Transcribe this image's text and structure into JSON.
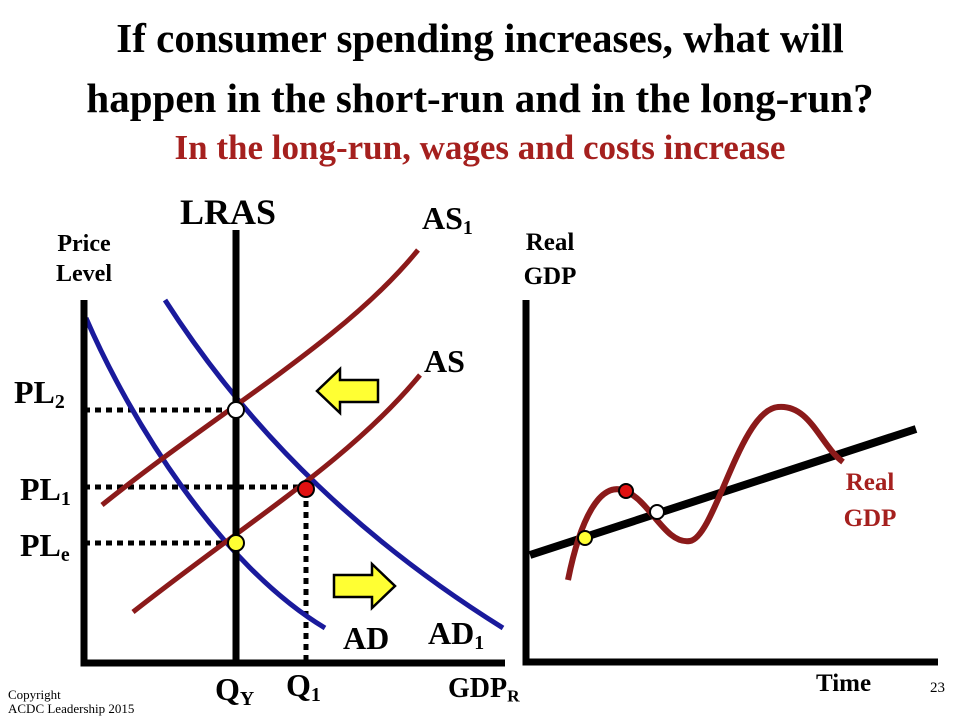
{
  "title_line1": "If consumer spending increases, what will",
  "title_line2": "happen in the short-run and in the long-run?",
  "subtitle": "In the long-run, wages and costs increase",
  "left_graph": {
    "y_axis_label_line1": "Price",
    "y_axis_label_line2": "Level",
    "x_axis_label": {
      "main": "GDP",
      "sub": "R"
    },
    "lras_label": "LRAS",
    "curves": {
      "as1": {
        "main": "AS",
        "sub": "1"
      },
      "as": "AS",
      "ad": "AD",
      "ad1": {
        "main": "AD",
        "sub": "1"
      }
    },
    "price_levels": {
      "pl2": {
        "main": "PL",
        "sub": "2"
      },
      "pl1": {
        "main": "PL",
        "sub": "1"
      },
      "ple": {
        "main": "PL",
        "sub": "e"
      }
    },
    "quantities": {
      "qy": {
        "main": "Q",
        "sub": "Y"
      },
      "q1": {
        "main": "Q",
        "sub": "1"
      }
    },
    "arrows": [
      "left",
      "right"
    ]
  },
  "right_graph": {
    "y_axis_label_line1": "Real",
    "y_axis_label_line2": "GDP",
    "x_axis_label": "Time",
    "curve_label_line1": "Real",
    "curve_label_line2": "GDP"
  },
  "colors": {
    "curve_red": "#8b1a1a",
    "curve_blue": "#1a1a9c",
    "subtitle_red": "#a5201e",
    "arrow_yellow": "#ffff33",
    "dot_red": "#e01010",
    "dot_yellow": "#ffff33",
    "dot_white": "#ffffff"
  },
  "footer": {
    "copyright_line1": "Copyright",
    "copyright_line2": "ACDC Leadership 2015",
    "page_number": "23"
  }
}
